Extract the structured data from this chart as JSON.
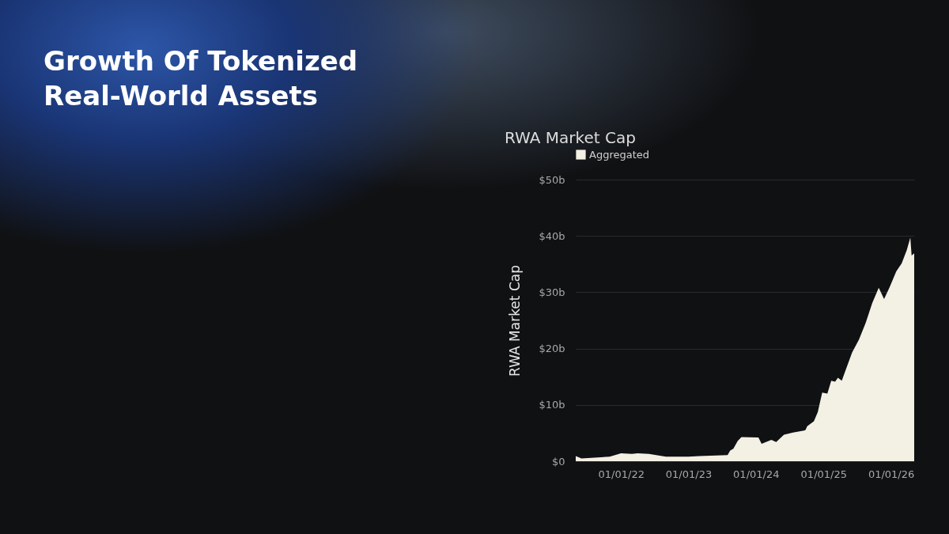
{
  "chart_data": {
    "type": "area",
    "title": "Growth Of Tokenized Real-World Assets",
    "subtitle": "RWA Market Cap",
    "ylabel": "RWA Market Cap",
    "x": [
      "2021-05-01",
      "2021-06-01",
      "2021-11-01",
      "2022-01-01",
      "2022-03-01",
      "2022-04-01",
      "2022-06-01",
      "2022-09-01",
      "2023-01-01",
      "2023-03-01",
      "2023-08-01",
      "2023-08-15",
      "2023-09-01",
      "2023-09-25",
      "2023-10-15",
      "2024-01-15",
      "2024-02-01",
      "2024-03-25",
      "2024-04-20",
      "2024-06-01",
      "2024-07-20",
      "2024-09-25",
      "2024-10-05",
      "2024-11-10",
      "2024-12-01",
      "2024-12-25",
      "2025-01-22",
      "2025-02-12",
      "2025-03-05",
      "2025-03-20",
      "2025-04-10",
      "2025-05-01",
      "2025-06-05",
      "2025-07-12",
      "2025-08-18",
      "2025-09-22",
      "2025-10-27",
      "2025-11-25",
      "2025-12-25",
      "2026-01-30",
      "2026-02-28",
      "2026-03-28",
      "2026-04-16",
      "2026-04-23",
      "2026-05-07"
    ],
    "series": [
      {
        "name": "Aggregated",
        "color": "#f3f0e4",
        "values": [
          0.9,
          0.5,
          0.8,
          1.4,
          1.3,
          1.4,
          1.3,
          0.8,
          0.8,
          0.9,
          1.1,
          1.9,
          2.2,
          3.6,
          4.3,
          4.2,
          3.1,
          3.8,
          3.4,
          4.7,
          5.1,
          5.5,
          6.2,
          7.1,
          8.7,
          12.2,
          12.0,
          14.3,
          14.1,
          14.8,
          14.3,
          16.2,
          19.3,
          21.6,
          24.6,
          28.1,
          30.8,
          28.8,
          30.9,
          33.7,
          35.1,
          37.5,
          39.7,
          36.5,
          36.9
        ]
      }
    ],
    "xlim": [
      "2021-05-01",
      "2026-05-07"
    ],
    "xticks": [
      {
        "value": "2022-01-01",
        "label": "01/01/22"
      },
      {
        "value": "2023-01-01",
        "label": "01/01/23"
      },
      {
        "value": "2024-01-01",
        "label": "01/01/24"
      },
      {
        "value": "2025-01-01",
        "label": "01/01/25"
      },
      {
        "value": "2026-01-01",
        "label": "01/01/26"
      }
    ],
    "ylim": [
      0,
      50
    ],
    "yticks": [
      {
        "value": 0,
        "label": "$0"
      },
      {
        "value": 10,
        "label": "$10b"
      },
      {
        "value": 20,
        "label": "$20b"
      },
      {
        "value": 30,
        "label": "$30b"
      },
      {
        "value": 40,
        "label": "$40b"
      },
      {
        "value": 50,
        "label": "$50b"
      }
    ],
    "grid": "y",
    "legend": "top left"
  }
}
